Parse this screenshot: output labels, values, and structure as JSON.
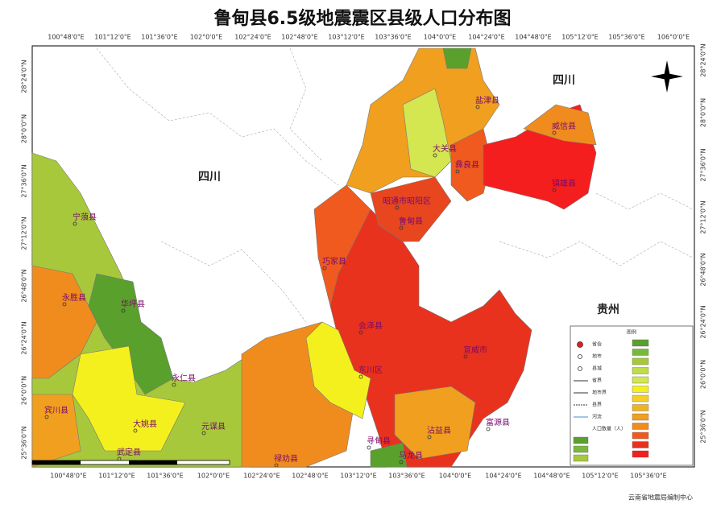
{
  "title": "鲁甸县6.5级地震震区县级人口分布图",
  "map": {
    "top_lon_labels": [
      "100°48'0\"E",
      "101°12'0\"E",
      "101°36'0\"E",
      "102°0'0\"E",
      "102°24'0\"E",
      "102°48'0\"E",
      "103°12'0\"E",
      "103°36'0\"E",
      "104°0'0\"E",
      "104°24'0\"E",
      "104°48'0\"E",
      "105°12'0\"E",
      "105°36'0\"E",
      "106°0'0\"E"
    ],
    "bottom_lon_labels": [
      "100°48'0\"E",
      "101°12'0\"E",
      "101°36'0\"E",
      "102°0'0\"E",
      "102°24'0\"E",
      "102°48'0\"E",
      "103°12'0\"E",
      "103°36'0\"E",
      "104°0'0\"E",
      "104°24'0\"E",
      "104°48'0\"E",
      "105°12'0\"E",
      "105°36'0\"E"
    ],
    "left_lat_labels": [
      "28°24'0\"N",
      "28°0'0\"N",
      "27°36'0\"N",
      "27°12'0\"N",
      "26°48'0\"N",
      "26°24'0\"N",
      "26°0'0\"N",
      "25°36'0\"N"
    ],
    "right_lat_labels": [
      "28°24'0\"N",
      "28°0'0\"N",
      "27°36'0\"N",
      "27°12'0\"N",
      "26°48'0\"N",
      "26°24'0\"N",
      "26°0'0\"N",
      "25°36'0\"N"
    ],
    "provinces": [
      "四川",
      "四川",
      "贵州"
    ],
    "places": [
      "宁蒗县",
      "永胜县",
      "华坪县",
      "永仁县",
      "宾川县",
      "大姚县",
      "元谋县",
      "武定县",
      "禄劝县",
      "会泽县",
      "东川区",
      "寻甸县",
      "马龙县",
      "沾益县",
      "宣威市",
      "富源县",
      "巧家县",
      "昭通市昭阳区",
      "鲁甸县",
      "大关县",
      "彝良县",
      "盐津县",
      "威信县",
      "镇雄县"
    ],
    "legend": {
      "title": "图例",
      "items": [
        "省会",
        "地市",
        "县城",
        "省界",
        "地市界",
        "县界",
        "河流",
        "人口数量（人）"
      ]
    }
  },
  "footer": "云南省地震局编制中心"
}
